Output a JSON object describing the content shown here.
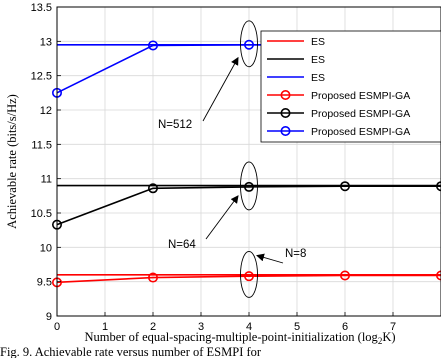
{
  "chart_data": {
    "type": "line",
    "xlabel": "Number of equal-spacing-multiple-point-initialization (log",
    "xlabel_sub": "2",
    "xlabel_tail": "K)",
    "ylabel": "Achievable rate (bits/s/Hz)",
    "xlim": [
      0,
      8
    ],
    "ylim": [
      9,
      13.5
    ],
    "xticks": [
      "0",
      "1",
      "2",
      "3",
      "4",
      "5",
      "6",
      "7"
    ],
    "yticks": [
      "9",
      "9.5",
      "10",
      "10.5",
      "11",
      "11.5",
      "12",
      "12.5",
      "13",
      "13.5"
    ],
    "grid": true,
    "legend_position": "right",
    "series": [
      {
        "name": "ES",
        "color": "#ff0000",
        "marker": "none",
        "x": [
          0,
          8
        ],
        "y": [
          9.6,
          9.6
        ]
      },
      {
        "name": "ES",
        "color": "#000000",
        "marker": "none",
        "x": [
          0,
          8
        ],
        "y": [
          10.9,
          10.9
        ]
      },
      {
        "name": "ES",
        "color": "#0000ff",
        "marker": "none",
        "x": [
          0,
          8
        ],
        "y": [
          12.95,
          12.95
        ]
      },
      {
        "name": "Proposed ESMPI-GA",
        "color": "#ff0000",
        "marker": "circle",
        "x": [
          0,
          2,
          4,
          6,
          8
        ],
        "y": [
          9.49,
          9.56,
          9.58,
          9.59,
          9.59
        ]
      },
      {
        "name": "Proposed ESMPI-GA",
        "color": "#000000",
        "marker": "circle",
        "x": [
          0,
          2,
          4,
          6,
          8
        ],
        "y": [
          10.33,
          10.86,
          10.88,
          10.89,
          10.89
        ]
      },
      {
        "name": "Proposed ESMPI-GA",
        "color": "#0000ff",
        "marker": "circle",
        "x": [
          0,
          2,
          4,
          6,
          8
        ],
        "y": [
          12.25,
          12.94,
          12.95,
          12.95,
          12.95
        ]
      }
    ],
    "annotations": [
      {
        "text": "N=512",
        "target_x": 4,
        "target_y": 12.95
      },
      {
        "text": "N=64",
        "target_x": 4,
        "target_y": 10.88
      },
      {
        "text": "N=8",
        "target_x": 4,
        "target_y": 9.59
      }
    ]
  },
  "caption": "Fig. 9. Achievable rate versus number of ESMPI for"
}
